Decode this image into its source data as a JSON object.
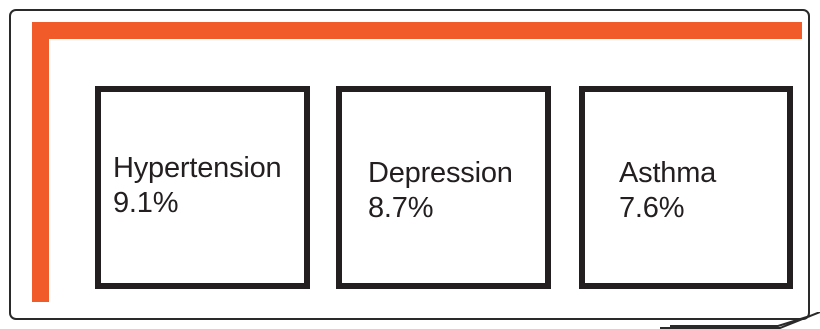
{
  "colors": {
    "accent": "#f15a29",
    "border": "#231f20",
    "frame": "#2a2a2a"
  },
  "cards": [
    {
      "label": "Hypertension",
      "value": "9.1%"
    },
    {
      "label": "Depression",
      "value": "8.7%"
    },
    {
      "label": "Asthma",
      "value": "7.6%"
    }
  ]
}
